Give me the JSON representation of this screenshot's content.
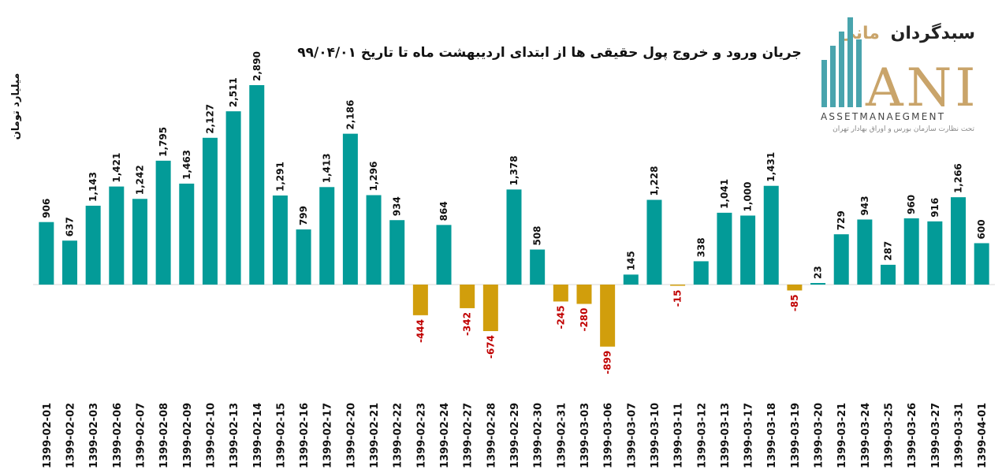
{
  "title": "جریان ورود و خروج پول حقیقی ها از ابتدای اردیبهشت ماه تا تاریخ ۹۹/۰۴/۰۱",
  "unit_label": "میلیارد تومان",
  "logo": {
    "persian_name_part1": "سبدگردان",
    "persian_name_part2": "مانی",
    "mark_text": "ANI",
    "english_text": "ASSETMANAEGMENT",
    "note": "تحت نظارت سازمان بورس و اوراق بهادار تهران"
  },
  "colors": {
    "positive": "#039b98",
    "negative": "#d19e0c",
    "negative_label": "#c00000",
    "positive_label": "#111111",
    "logo_teal": "#49a4ad",
    "logo_gold": "#c9a46a"
  },
  "chart_data": {
    "type": "bar",
    "title": "جریان ورود و خروج پول حقیقی ها از ابتدای اردیبهشت ماه تا تاریخ ۹۹/۰۴/۰۱",
    "ylabel": "میلیارد تومان",
    "xlabel": "",
    "grid": false,
    "legend": "none",
    "ylim": [
      -1220,
      3150
    ],
    "categories": [
      "1399-02-01",
      "1399-02-02",
      "1399-02-03",
      "1399-02-06",
      "1399-02-07",
      "1399-02-08",
      "1399-02-09",
      "1399-02-10",
      "1399-02-13",
      "1399-02-14",
      "1399-02-15",
      "1399-02-16",
      "1399-02-17",
      "1399-02-20",
      "1399-02-21",
      "1399-02-22",
      "1399-02-23",
      "1399-02-24",
      "1399-02-27",
      "1399-02-28",
      "1399-02-29",
      "1399-02-30",
      "1399-02-31",
      "1399-03-03",
      "1399-03-06",
      "1399-03-07",
      "1399-03-10",
      "1399-03-11",
      "1399-03-12",
      "1399-03-13",
      "1399-03-17",
      "1399-03-18",
      "1399-03-19",
      "1399-03-20",
      "1399-03-21",
      "1399-03-24",
      "1399-03-25",
      "1399-03-26",
      "1399-03-27",
      "1399-03-31",
      "1399-04-01"
    ],
    "values": [
      906,
      637,
      1143,
      1421,
      1242,
      1795,
      1463,
      2127,
      2511,
      2890,
      1291,
      799,
      1413,
      2186,
      1296,
      934,
      -444,
      864,
      -342,
      -674,
      1378,
      508,
      -245,
      -280,
      -899,
      145,
      1228,
      -15,
      338,
      1041,
      1000,
      1431,
      -85,
      23,
      729,
      943,
      287,
      960,
      916,
      1266,
      600
    ]
  }
}
